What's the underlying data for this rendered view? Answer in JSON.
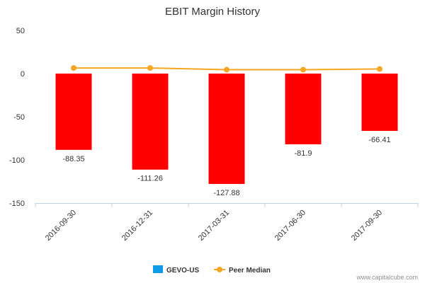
{
  "chart_data": {
    "type": "bar",
    "title": "EBIT Margin History",
    "categories": [
      "2016-09-30",
      "2016-12-31",
      "2017-03-31",
      "2017-06-30",
      "2017-09-30"
    ],
    "series": [
      {
        "name": "GEVO-US",
        "type": "bar",
        "values": [
          -88.35,
          -111.26,
          -127.88,
          -81.9,
          -66.41
        ],
        "data_labels": [
          "-88.35",
          "-111.26",
          "-127.88",
          "-81.9",
          "-66.41"
        ],
        "bar_color": "#ff0000",
        "legend_color": "#0f9be8"
      },
      {
        "name": "Peer Median",
        "type": "line",
        "values": [
          6.5,
          6.5,
          4.5,
          4.5,
          5.3
        ],
        "color": "#f5a623"
      }
    ],
    "ylim": [
      -150,
      50
    ],
    "yticks": [
      "50",
      "0",
      "-50",
      "-100",
      "-150"
    ],
    "ytick_values": [
      50,
      0,
      -50,
      -100,
      -150
    ],
    "legend_position": "bottom-center",
    "grid": false
  },
  "credit": "www.capitalcube.com"
}
